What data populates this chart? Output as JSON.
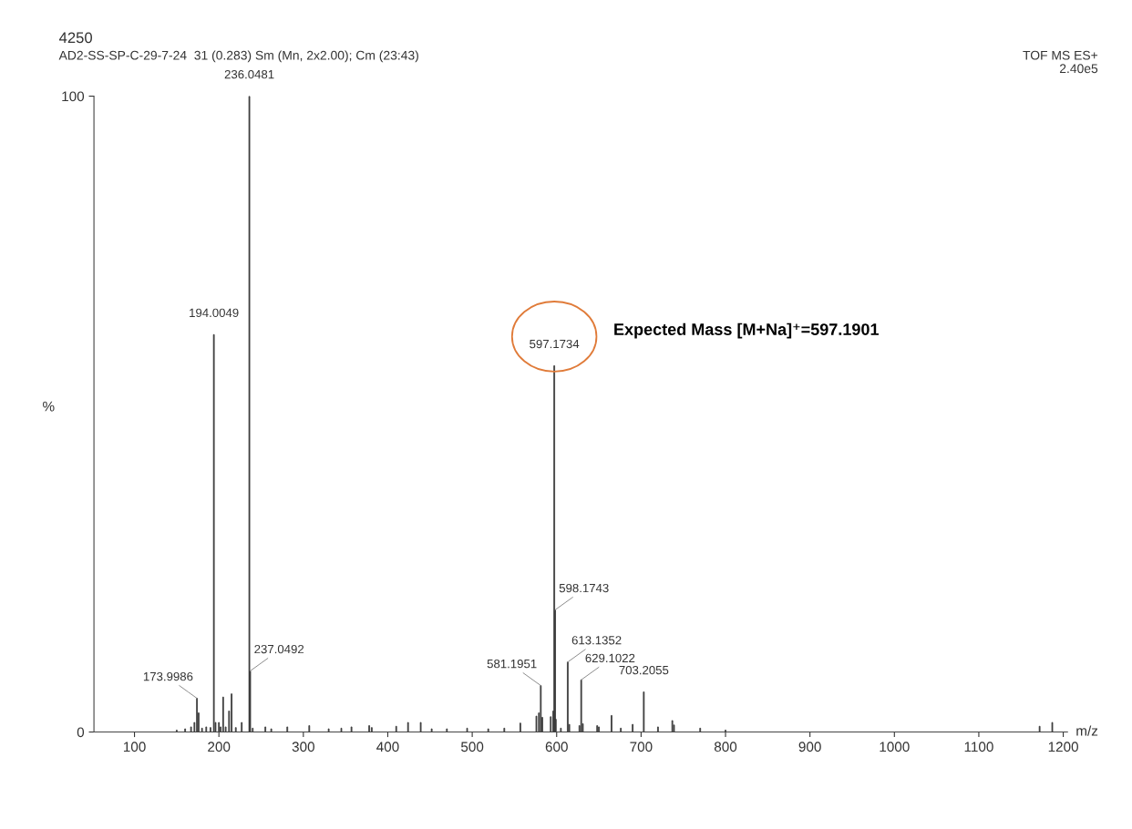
{
  "chart_data": {
    "type": "bar",
    "title": "4250",
    "subtitle": "AD2-SS-SP-C-29-7-24  31 (0.283) Sm (Mn, 2x2.00); Cm (23:43)",
    "xlabel": "m/z",
    "ylabel": "%",
    "x": [
      150,
      160,
      167,
      171,
      173.9986,
      176,
      180,
      185,
      190,
      194.0049,
      196,
      200,
      202,
      205,
      208,
      212,
      215,
      220,
      227,
      236.0481,
      237.0492,
      240,
      255,
      262,
      281,
      307,
      330,
      345,
      357,
      378,
      381,
      410,
      424,
      439,
      452,
      470,
      494,
      519,
      538,
      557,
      576,
      579,
      581.1951,
      583,
      593,
      596,
      597.1734,
      598.1743,
      599,
      605,
      613.1352,
      615,
      627,
      629.1022,
      631,
      648,
      650,
      665,
      676,
      690,
      703.2055,
      720,
      737,
      739,
      770,
      800,
      1172,
      1187
    ],
    "series": [
      {
        "color": "#3a3a3a",
        "values": [
          0.3,
          0.5,
          0.8,
          1.5,
          5.3,
          3,
          0.6,
          0.8,
          0.7,
          62.5,
          1.5,
          1.5,
          0.8,
          5.5,
          0.8,
          3.3,
          6,
          0.7,
          1.5,
          100,
          9.6,
          0.6,
          0.8,
          0.5,
          0.8,
          1,
          0.5,
          0.6,
          0.8,
          1,
          0.7,
          0.9,
          1.5,
          1.5,
          0.5,
          0.5,
          0.6,
          0.5,
          0.6,
          1.4,
          2.5,
          3,
          7.3,
          2.3,
          2.4,
          3.3,
          57.6,
          19.2,
          2,
          0.6,
          11.0,
          1.2,
          1.0,
          8.2,
          1.3,
          1.0,
          0.8,
          2.6,
          0.6,
          1.2,
          6.3,
          0.8,
          1.8,
          1.1,
          0.6,
          0.3,
          0.9,
          1.5
        ]
      }
    ],
    "xlim": [
      52,
      1205
    ],
    "xticks": [
      100,
      200,
      300,
      400,
      500,
      600,
      700,
      800,
      900,
      1000,
      1100,
      1200
    ],
    "ylim": [
      0,
      100
    ],
    "yticks": [
      0,
      100
    ],
    "annotations": [
      "TOF MS ES+",
      "2.40e5",
      "Expected Mass [M+Na]⁺=597.1901",
      {
        "text": "173.9986",
        "x": 173.9986,
        "y": 5.3
      },
      {
        "text": "194.0049",
        "x": 194.0049,
        "y": 62.5
      },
      {
        "text": "236.0481",
        "x": 236.0481,
        "y": 100
      },
      {
        "text": "237.0492",
        "x": 237.0492,
        "y": 9.6
      },
      {
        "text": "581.1951",
        "x": 581.1951,
        "y": 7.3
      },
      {
        "text": "597.1734",
        "x": 597.1734,
        "y": 57.6
      },
      {
        "text": "598.1743",
        "x": 598.1743,
        "y": 19.2
      },
      {
        "text": "613.1352",
        "x": 613.1352,
        "y": 11.0
      },
      {
        "text": "629.1022",
        "x": 629.1022,
        "y": 8.2
      },
      {
        "text": "703.2055",
        "x": 703.2055,
        "y": 6.3
      }
    ]
  }
}
